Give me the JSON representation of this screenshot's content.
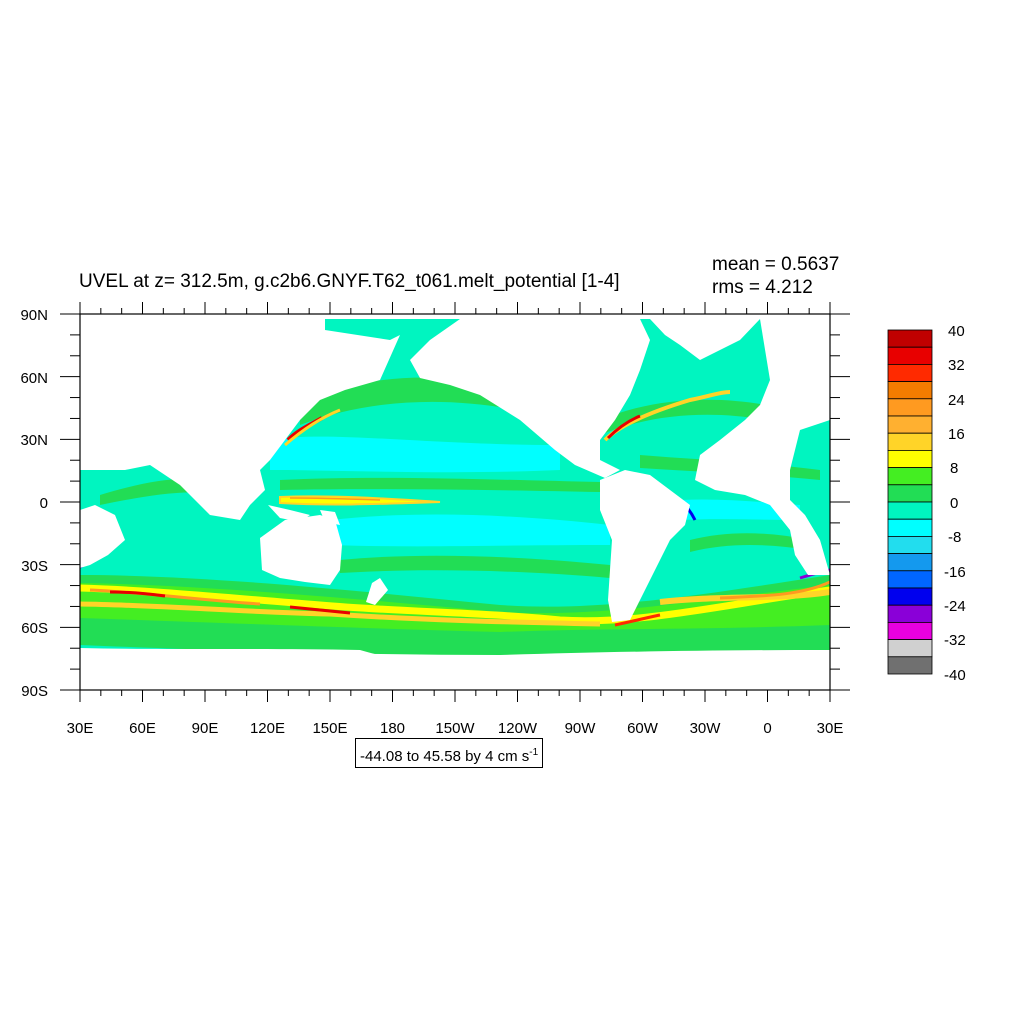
{
  "title": "UVEL at z= 312.5m, g.c2b6.GNYF.T62_t061.melt_potential [1-4]",
  "stats": {
    "mean": "mean = 0.5637",
    "rms": "rms = 4.212"
  },
  "contour_info": {
    "text": "-44.08 to 45.58 by 4 cm s",
    "superscript": "-1"
  },
  "lat_labels": [
    "90N",
    "60N",
    "30N",
    "0",
    "30S",
    "60S",
    "90S"
  ],
  "lon_labels": [
    "30E",
    "60E",
    "90E",
    "120E",
    "150E",
    "180",
    "150W",
    "120W",
    "90W",
    "60W",
    "30W",
    "0",
    "30E"
  ],
  "colorbar": {
    "labels": [
      "40",
      "32",
      "24",
      "16",
      "8",
      "0",
      "-8",
      "-16",
      "-24",
      "-32",
      "-40"
    ],
    "colors": [
      "#c00000",
      "#e80000",
      "#ff2a00",
      "#f47c00",
      "#ff9a20",
      "#ffb030",
      "#ffd428",
      "#ffff00",
      "#44ee22",
      "#22dd55",
      "#00f5c0",
      "#00ffff",
      "#22ddee",
      "#1499ee",
      "#0066ff",
      "#0000ee",
      "#8a00d8",
      "#e800e0",
      "#d0d0d0",
      "#707070"
    ]
  },
  "colors": {
    "ocean": "#00f5c0",
    "land": "#ffffff",
    "green": "#22dd55",
    "current_core": "#ffff00",
    "jet": "#ff2a00"
  }
}
